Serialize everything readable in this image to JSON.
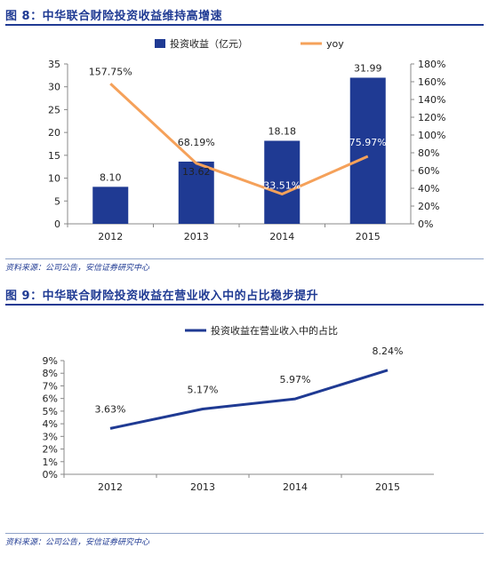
{
  "figures": [
    {
      "title": "图 8：中华联合财险投资收益维持高增速",
      "source": "资料来源：公司公告，安信证券研究中心"
    },
    {
      "title": "图 9：中华联合财险投资收益在营业收入中的占比稳步提升",
      "source": "资料来源：公司公告，安信证券研究中心"
    }
  ],
  "chart_data": [
    {
      "type": "bar",
      "categories": [
        "2012",
        "2013",
        "2014",
        "2015"
      ],
      "series": [
        {
          "name": "投资收益（亿元）",
          "type": "bar",
          "axis": "left",
          "values": [
            8.1,
            13.62,
            18.18,
            31.99
          ],
          "labels": [
            "8.10",
            "13.62",
            "18.18",
            "31.99"
          ]
        },
        {
          "name": "yoy",
          "type": "line",
          "axis": "right",
          "values": [
            157.75,
            68.19,
            33.51,
            75.97
          ],
          "labels": [
            "157.75%",
            "68.19%",
            "33.51%",
            "75.97%"
          ]
        }
      ],
      "y_left": {
        "min": 0,
        "max": 35,
        "step": 5,
        "ticks": [
          "0",
          "5",
          "10",
          "15",
          "20",
          "25",
          "30",
          "35"
        ]
      },
      "y_right": {
        "min": 0,
        "max": 180,
        "step": 20,
        "ticks": [
          "0%",
          "20%",
          "40%",
          "60%",
          "80%",
          "100%",
          "120%",
          "140%",
          "160%",
          "180%"
        ]
      },
      "legend_position": "top",
      "colors": {
        "bar": "#1f3a93",
        "line": "#f5a15a"
      },
      "grid": false
    },
    {
      "type": "line",
      "categories": [
        "2012",
        "2013",
        "2014",
        "2015"
      ],
      "series": [
        {
          "name": "投资收益在营业收入中的占比",
          "values": [
            3.63,
            5.17,
            5.97,
            8.24
          ],
          "labels": [
            "3.63%",
            "5.17%",
            "5.97%",
            "8.24%"
          ]
        }
      ],
      "y": {
        "min": 0,
        "max": 9,
        "step": 1,
        "ticks": [
          "0%",
          "1%",
          "2%",
          "3%",
          "4%",
          "5%",
          "6%",
          "7%",
          "8%",
          "9%"
        ]
      },
      "legend_position": "top",
      "colors": {
        "line": "#1f3a93"
      },
      "grid": false
    }
  ]
}
